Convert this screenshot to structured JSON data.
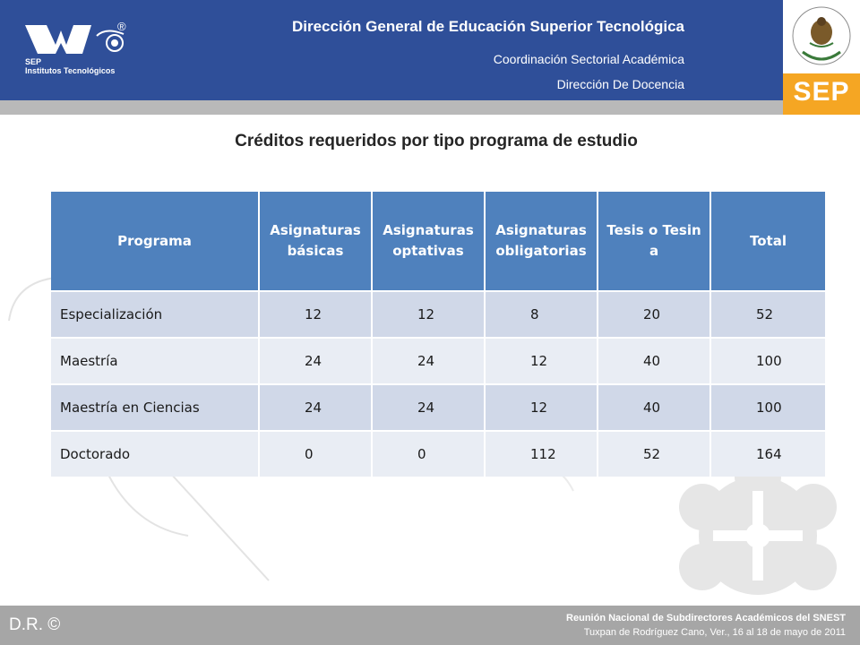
{
  "header": {
    "logo_text_line1": "SEP",
    "logo_text_line2": "Institutos Tecnológicos",
    "logo_reg": "®",
    "title": "Dirección General de Educación Superior Tecnológica",
    "subtitle1": "Coordinación Sectorial Académica",
    "subtitle2": "Dirección De Docencia",
    "sep_badge": "SEP"
  },
  "slide": {
    "title": "Créditos requeridos por tipo programa de estudio"
  },
  "table": {
    "headers": [
      "Programa",
      "Asignaturas básicas",
      "Asignaturas optativas",
      "Asignaturas obligatorias",
      "Tesis o Tesina",
      "Total"
    ],
    "rows": [
      [
        "Especialización",
        "12",
        "12",
        "8",
        "20",
        "52"
      ],
      [
        "Maestría",
        "24",
        "24",
        "12",
        "40",
        "100"
      ],
      [
        "Maestría en Ciencias",
        "24",
        "24",
        "12",
        "40",
        "100"
      ],
      [
        "Doctorado",
        "0",
        "0",
        "112",
        "52",
        "164"
      ]
    ]
  },
  "footer": {
    "copyright": "D.R. ©",
    "line1": "Reunión Nacional de Subdirectores Académicos del SNEST",
    "line2": "Tuxpan de Rodríguez Cano, Ver., 16 al 18 de mayo de 2011"
  },
  "colors": {
    "header_bg": "#2f4f99",
    "table_header": "#4f81bd",
    "row_odd": "#d0d8e8",
    "row_even": "#e9edf4",
    "sep_orange": "#f5a623",
    "footer_bg": "#a6a6a6"
  }
}
